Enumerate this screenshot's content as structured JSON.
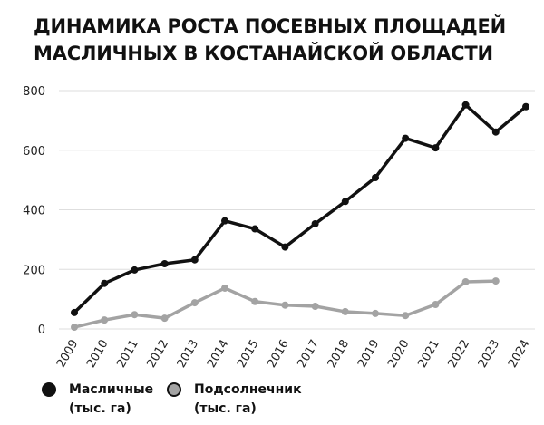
{
  "chart_data": {
    "type": "line",
    "title": [
      "ДИНАМИКА РОСТА ПОСЕВНЫХ ПЛОЩАДЕЙ",
      "МАСЛИЧНЫХ В КОСТАНАЙСКОЙ ОБЛАСТИ"
    ],
    "x": [
      "2009",
      "2010",
      "2011",
      "2012",
      "2013",
      "2014",
      "2015",
      "2016",
      "2017",
      "2018",
      "2019",
      "2020",
      "2021",
      "2022",
      "2023",
      "2024"
    ],
    "ylim": [
      0,
      800
    ],
    "yticks": [
      0,
      200,
      400,
      600,
      800
    ],
    "grid": "horizontal",
    "legend_position": "bottom-left",
    "series": [
      {
        "name": "Масличные",
        "name_line2": "(тыс. га)",
        "color": "#111111",
        "values": [
          55,
          153,
          198,
          219,
          232,
          363,
          336,
          275,
          353,
          428,
          508,
          640,
          608,
          752,
          661,
          746
        ]
      },
      {
        "name": "Подсолнечник",
        "name_line2": "(тыс. га)",
        "color": "#a3a3a3",
        "values": [
          6,
          30,
          48,
          36,
          88,
          137,
          92,
          80,
          76,
          58,
          52,
          45,
          82,
          158,
          161,
          null
        ]
      }
    ]
  }
}
